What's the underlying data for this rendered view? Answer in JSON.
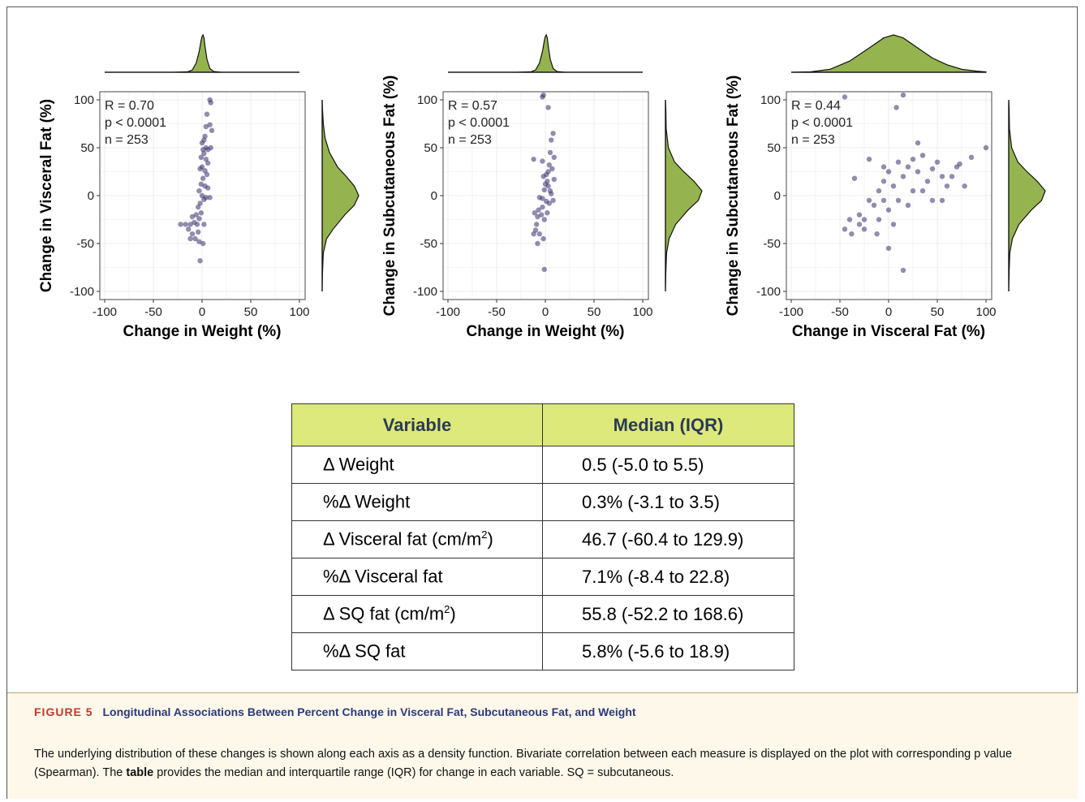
{
  "colors": {
    "density_fill": "#95b450",
    "point": "#35306e",
    "grid": "#ececec",
    "table_header_bg": "#dde97a",
    "figure_num": "#c0392b",
    "figure_title": "#2b3a7a",
    "caption_bg": "#fdf8ea"
  },
  "chart_data": [
    {
      "type": "scatter",
      "xlabel": "Change in Weight (%)",
      "ylabel": "Change in Visceral Fat (%)",
      "xlim": [
        -100,
        100
      ],
      "ylim": [
        -100,
        100
      ],
      "xticks": [
        -100,
        -50,
        0,
        50,
        100
      ],
      "yticks": [
        -100,
        -50,
        0,
        50,
        100
      ],
      "grid": true,
      "annotations": [
        "R = 0.70",
        "p < 0.0001",
        "n = 253"
      ],
      "n": 253,
      "points": [
        [
          8,
          100
        ],
        [
          9,
          97
        ],
        [
          5,
          85
        ],
        [
          8,
          74
        ],
        [
          4,
          72
        ],
        [
          10,
          68
        ],
        [
          2,
          58
        ],
        [
          3,
          62
        ],
        [
          0,
          55
        ],
        [
          1,
          48
        ],
        [
          4,
          50
        ],
        [
          6,
          48
        ],
        [
          9,
          50
        ],
        [
          -1,
          40
        ],
        [
          2,
          44
        ],
        [
          4,
          38
        ],
        [
          6,
          34
        ],
        [
          0,
          30
        ],
        [
          3,
          26
        ],
        [
          5,
          22
        ],
        [
          -2,
          28
        ],
        [
          1,
          18
        ],
        [
          -1,
          12
        ],
        [
          3,
          10
        ],
        [
          6,
          8
        ],
        [
          -3,
          5
        ],
        [
          0,
          0
        ],
        [
          2,
          -4
        ],
        [
          4,
          -2
        ],
        [
          8,
          -2
        ],
        [
          -2,
          -8
        ],
        [
          -4,
          -12
        ],
        [
          -1,
          -18
        ],
        [
          -6,
          -20
        ],
        [
          -3,
          -24
        ],
        [
          -5,
          -30
        ],
        [
          -8,
          -28
        ],
        [
          -10,
          -22
        ],
        [
          -12,
          -30
        ],
        [
          -14,
          -35
        ],
        [
          -17,
          -30
        ],
        [
          -22,
          -30
        ],
        [
          -10,
          -40
        ],
        [
          -7,
          -45
        ],
        [
          -3,
          -48
        ],
        [
          -12,
          -45
        ],
        [
          -2,
          -68
        ],
        [
          1,
          -50
        ],
        [
          -4,
          -38
        ],
        [
          2,
          -30
        ]
      ],
      "x_density": [
        [
          -100,
          0
        ],
        [
          -30,
          0
        ],
        [
          -15,
          0.01
        ],
        [
          -10,
          0.06
        ],
        [
          -6,
          0.25
        ],
        [
          -3,
          0.55
        ],
        [
          -1,
          0.85
        ],
        [
          0,
          0.96
        ],
        [
          1,
          1
        ],
        [
          2,
          0.92
        ],
        [
          3,
          0.7
        ],
        [
          5,
          0.35
        ],
        [
          8,
          0.1
        ],
        [
          12,
          0.02
        ],
        [
          20,
          0
        ],
        [
          100,
          0
        ]
      ],
      "y_density": [
        [
          -100,
          0
        ],
        [
          -80,
          0.01
        ],
        [
          -60,
          0.03
        ],
        [
          -45,
          0.12
        ],
        [
          -35,
          0.3
        ],
        [
          -20,
          0.62
        ],
        [
          -10,
          0.88
        ],
        [
          0,
          1
        ],
        [
          10,
          0.88
        ],
        [
          20,
          0.66
        ],
        [
          30,
          0.42
        ],
        [
          45,
          0.2
        ],
        [
          60,
          0.08
        ],
        [
          75,
          0.03
        ],
        [
          90,
          0.01
        ],
        [
          100,
          0
        ]
      ]
    },
    {
      "type": "scatter",
      "xlabel": "Change in Weight (%)",
      "ylabel": "Change in Subcutaneous Fat (%)",
      "xlim": [
        -100,
        100
      ],
      "ylim": [
        -100,
        100
      ],
      "xticks": [
        -100,
        -50,
        0,
        50,
        100
      ],
      "yticks": [
        -100,
        -50,
        0,
        50,
        100
      ],
      "grid": true,
      "annotations": [
        "R = 0.57",
        "p < 0.0001",
        "n = 253"
      ],
      "n": 253,
      "points": [
        [
          -3,
          103
        ],
        [
          -2,
          105
        ],
        [
          3,
          92
        ],
        [
          8,
          65
        ],
        [
          6,
          58
        ],
        [
          5,
          45
        ],
        [
          9,
          40
        ],
        [
          -3,
          36
        ],
        [
          -12,
          38
        ],
        [
          4,
          32
        ],
        [
          7,
          28
        ],
        [
          1,
          22
        ],
        [
          2,
          15
        ],
        [
          9,
          17
        ],
        [
          3,
          10
        ],
        [
          -1,
          6
        ],
        [
          5,
          5
        ],
        [
          -3,
          -3
        ],
        [
          1,
          -6
        ],
        [
          4,
          -8
        ],
        [
          -6,
          -2
        ],
        [
          -3,
          -12
        ],
        [
          -7,
          -15
        ],
        [
          -4,
          -20
        ],
        [
          -8,
          -22
        ],
        [
          -1,
          -25
        ],
        [
          -9,
          -30
        ],
        [
          -10,
          -36
        ],
        [
          -6,
          -40
        ],
        [
          -12,
          -40
        ],
        [
          -8,
          -50
        ],
        [
          -1,
          -77
        ],
        [
          -2,
          -45
        ],
        [
          2,
          -18
        ],
        [
          0,
          12
        ],
        [
          -2,
          20
        ],
        [
          6,
          2
        ],
        [
          8,
          -5
        ],
        [
          -11,
          -18
        ],
        [
          3,
          25
        ]
      ],
      "x_density": [
        [
          -100,
          0
        ],
        [
          -30,
          0
        ],
        [
          -15,
          0.01
        ],
        [
          -10,
          0.06
        ],
        [
          -6,
          0.25
        ],
        [
          -3,
          0.55
        ],
        [
          -1,
          0.85
        ],
        [
          0,
          0.96
        ],
        [
          1,
          1
        ],
        [
          2,
          0.92
        ],
        [
          3,
          0.7
        ],
        [
          5,
          0.35
        ],
        [
          8,
          0.1
        ],
        [
          12,
          0.02
        ],
        [
          20,
          0
        ],
        [
          100,
          0
        ]
      ],
      "y_density": [
        [
          -100,
          0
        ],
        [
          -80,
          0.01
        ],
        [
          -60,
          0.03
        ],
        [
          -45,
          0.1
        ],
        [
          -30,
          0.28
        ],
        [
          -15,
          0.62
        ],
        [
          -5,
          0.9
        ],
        [
          5,
          1
        ],
        [
          15,
          0.78
        ],
        [
          25,
          0.5
        ],
        [
          35,
          0.25
        ],
        [
          50,
          0.08
        ],
        [
          70,
          0.02
        ],
        [
          90,
          0.01
        ],
        [
          100,
          0
        ]
      ]
    },
    {
      "type": "scatter",
      "xlabel": "Change in Visceral Fat (%)",
      "ylabel": "Change in Subcutaneous Fat (%)",
      "xlim": [
        -100,
        100
      ],
      "ylim": [
        -100,
        100
      ],
      "xticks": [
        -100,
        -50,
        0,
        50,
        100
      ],
      "yticks": [
        -100,
        -50,
        0,
        50,
        100
      ],
      "grid": true,
      "annotations": [
        "R = 0.44",
        "p < 0.0001",
        "n = 253"
      ],
      "n": 253,
      "points": [
        [
          -45,
          103
        ],
        [
          15,
          105
        ],
        [
          8,
          92
        ],
        [
          100,
          50
        ],
        [
          85,
          40
        ],
        [
          73,
          33
        ],
        [
          78,
          10
        ],
        [
          65,
          20
        ],
        [
          50,
          35
        ],
        [
          55,
          20
        ],
        [
          45,
          28
        ],
        [
          40,
          15
        ],
        [
          30,
          55
        ],
        [
          35,
          42
        ],
        [
          25,
          38
        ],
        [
          30,
          25
        ],
        [
          20,
          30
        ],
        [
          15,
          20
        ],
        [
          25,
          5
        ],
        [
          10,
          -5
        ],
        [
          5,
          10
        ],
        [
          0,
          25
        ],
        [
          -5,
          15
        ],
        [
          -10,
          5
        ],
        [
          -5,
          -5
        ],
        [
          0,
          -15
        ],
        [
          -15,
          -10
        ],
        [
          -20,
          -5
        ],
        [
          -25,
          -25
        ],
        [
          -30,
          -20
        ],
        [
          -40,
          -25
        ],
        [
          -45,
          -35
        ],
        [
          -38,
          -40
        ],
        [
          -30,
          -30
        ],
        [
          -25,
          -35
        ],
        [
          -12,
          -40
        ],
        [
          0,
          -55
        ],
        [
          15,
          -78
        ],
        [
          -20,
          38
        ],
        [
          -35,
          18
        ],
        [
          10,
          35
        ],
        [
          20,
          -10
        ],
        [
          35,
          5
        ],
        [
          45,
          -5
        ],
        [
          60,
          10
        ],
        [
          -10,
          -25
        ],
        [
          5,
          -30
        ],
        [
          -5,
          30
        ],
        [
          55,
          -5
        ],
        [
          70,
          30
        ]
      ],
      "x_density": [
        [
          -100,
          0
        ],
        [
          -80,
          0.01
        ],
        [
          -60,
          0.08
        ],
        [
          -40,
          0.3
        ],
        [
          -20,
          0.65
        ],
        [
          -5,
          0.92
        ],
        [
          5,
          1
        ],
        [
          15,
          0.92
        ],
        [
          30,
          0.65
        ],
        [
          45,
          0.38
        ],
        [
          60,
          0.2
        ],
        [
          75,
          0.08
        ],
        [
          90,
          0.03
        ],
        [
          100,
          0.01
        ]
      ],
      "y_density": [
        [
          -100,
          0
        ],
        [
          -80,
          0.01
        ],
        [
          -60,
          0.03
        ],
        [
          -45,
          0.1
        ],
        [
          -30,
          0.28
        ],
        [
          -15,
          0.62
        ],
        [
          -5,
          0.9
        ],
        [
          5,
          1
        ],
        [
          15,
          0.78
        ],
        [
          25,
          0.5
        ],
        [
          35,
          0.25
        ],
        [
          50,
          0.08
        ],
        [
          70,
          0.02
        ],
        [
          90,
          0.01
        ],
        [
          100,
          0
        ]
      ]
    }
  ],
  "table": {
    "header": {
      "variable": "Variable",
      "median": "Median (IQR)"
    },
    "rows": [
      {
        "variable_prefix": "Δ Weight",
        "variable_sup": "",
        "variable_suffix": "",
        "value": "0.5 (-5.0 to 5.5)"
      },
      {
        "variable_prefix": "%Δ Weight",
        "variable_sup": "",
        "variable_suffix": "",
        "value": "0.3% (-3.1 to 3.5)"
      },
      {
        "variable_prefix": "Δ Visceral fat (cm/m",
        "variable_sup": "2",
        "variable_suffix": ")",
        "value": "46.7 (-60.4 to 129.9)"
      },
      {
        "variable_prefix": "%Δ Visceral fat",
        "variable_sup": "",
        "variable_suffix": "",
        "value": "7.1% (-8.4 to 22.8)"
      },
      {
        "variable_prefix": "Δ SQ fat (cm/m",
        "variable_sup": "2",
        "variable_suffix": ")",
        "value": "55.8 (-52.2 to 168.6)"
      },
      {
        "variable_prefix": "%Δ SQ fat",
        "variable_sup": "",
        "variable_suffix": "",
        "value": "5.8% (-5.6 to 18.9)"
      }
    ]
  },
  "figure": {
    "number": "FIGURE 5",
    "title": "Longitudinal Associations Between Percent Change in Visceral Fat, Subcutaneous Fat, and Weight",
    "caption_part1": "The underlying distribution of these changes is shown along each axis as a density function. Bivariate correlation between each measure is displayed on the plot with corresponding p value (Spearman). The ",
    "caption_bold": "table",
    "caption_part2": " provides the median and interquartile range (IQR) for change in each variable. SQ = subcutaneous."
  }
}
